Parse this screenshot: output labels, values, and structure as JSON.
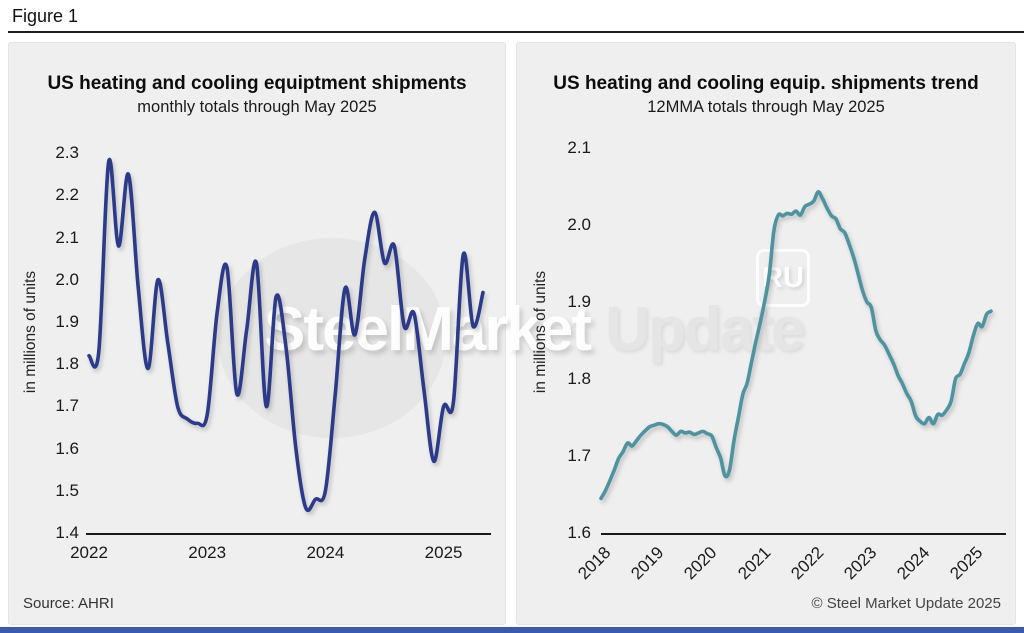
{
  "figure_label": "Figure 1",
  "footer": {
    "source": "Source: AHRI",
    "copyright": "© Steel Market Update 2025"
  },
  "watermark": {
    "brand_bold": "SteelMarket",
    "brand_light": " Update",
    "badge": "RU"
  },
  "colors": {
    "monthly_line": "#2c3a8a",
    "trend_line": "#4e939f",
    "panel_bg": "#efefef",
    "bottom_bar": "#3b5aa9"
  },
  "chart_data": [
    {
      "type": "line",
      "title": "US heating and cooling equiptment shipments",
      "subtitle": "monthly totals through May 2025",
      "ylabel": "in millions of units",
      "xlabel": "",
      "legend": "none",
      "grid": "off",
      "line_color": "#2c3a8a",
      "ylim": [
        1.4,
        2.3
      ],
      "yticks": [
        "2.3",
        "2.2",
        "2.1",
        "2.0",
        "1.9",
        "1.8",
        "1.7",
        "1.6",
        "1.5",
        "1.4"
      ],
      "xticks": [
        "2022",
        "2023",
        "2024",
        "2025"
      ],
      "freq": "monthly",
      "x_start": "2022-01",
      "x_end": "2025-05",
      "values": [
        1.82,
        1.83,
        2.28,
        2.08,
        2.25,
        1.98,
        1.79,
        2.0,
        1.85,
        1.7,
        1.67,
        1.66,
        1.68,
        1.92,
        2.03,
        1.73,
        1.88,
        2.04,
        1.7,
        1.96,
        1.84,
        1.6,
        1.46,
        1.48,
        1.5,
        1.73,
        1.98,
        1.87,
        2.05,
        2.16,
        2.04,
        2.08,
        1.89,
        1.92,
        1.74,
        1.57,
        1.7,
        1.71,
        2.06,
        1.89,
        1.97
      ]
    },
    {
      "type": "line",
      "title": "US heating and cooling equip. shipments trend",
      "subtitle": "12MMA totals through May 2025",
      "ylabel": "in millions of units",
      "xlabel": "",
      "legend": "none",
      "grid": "off",
      "line_color": "#4e939f",
      "ylim": [
        1.6,
        2.1
      ],
      "yticks": [
        "2.1",
        "2.0",
        "1.9",
        "1.8",
        "1.7",
        "1.6"
      ],
      "xticks": [
        "2018",
        "2019",
        "2020",
        "2021",
        "2022",
        "2023",
        "2024",
        "2025"
      ],
      "freq": "monthly",
      "x_start": "2018-01",
      "x_end": "2025-05",
      "values": [
        1.645,
        1.655,
        1.668,
        1.682,
        1.697,
        1.706,
        1.717,
        1.713,
        1.72,
        1.727,
        1.733,
        1.738,
        1.74,
        1.742,
        1.741,
        1.738,
        1.732,
        1.727,
        1.732,
        1.73,
        1.731,
        1.728,
        1.73,
        1.732,
        1.729,
        1.726,
        1.711,
        1.697,
        1.674,
        1.682,
        1.72,
        1.75,
        1.78,
        1.795,
        1.823,
        1.85,
        1.875,
        1.903,
        1.937,
        1.992,
        2.013,
        2.012,
        2.015,
        2.014,
        2.018,
        2.013,
        2.024,
        2.027,
        2.031,
        2.043,
        2.034,
        2.022,
        2.012,
        2.008,
        1.995,
        1.99,
        1.975,
        1.958,
        1.937,
        1.915,
        1.9,
        1.893,
        1.863,
        1.851,
        1.844,
        1.832,
        1.82,
        1.805,
        1.794,
        1.781,
        1.771,
        1.752,
        1.745,
        1.742,
        1.75,
        1.742,
        1.754,
        1.753,
        1.76,
        1.771,
        1.8,
        1.806,
        1.82,
        1.834,
        1.856,
        1.872,
        1.868,
        1.884,
        1.888
      ]
    }
  ]
}
